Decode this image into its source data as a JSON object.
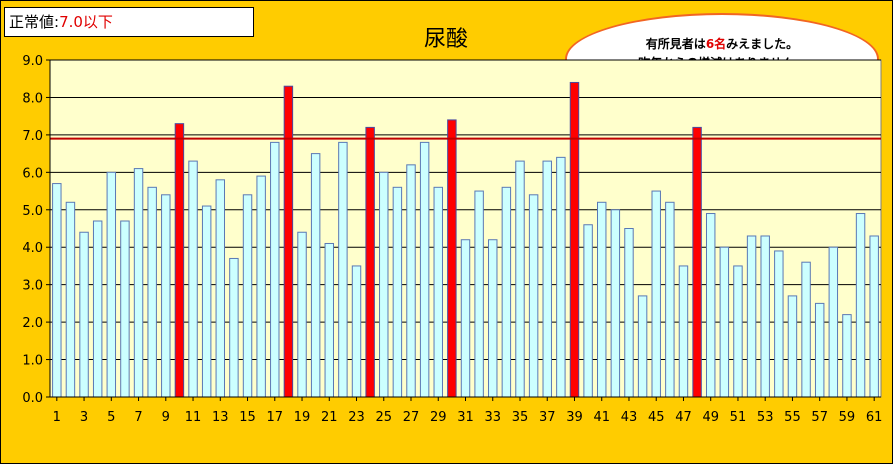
{
  "legend_box": {
    "label": "正常値:",
    "value": "7.0以下"
  },
  "note": {
    "line1_prefix": "有所見者は",
    "line1_number": "6名",
    "line1_suffix": "みえました。",
    "line2": "昨年からの増減はありません。"
  },
  "colors": {
    "background": "#FFCC00",
    "plot_area": "#FFFFCC",
    "normal_bar": "#CCFFFF",
    "abnormal_bar": "#FF0000",
    "threshold_line": "#C00000",
    "note_border": "#F26522"
  },
  "chart_data": {
    "type": "bar",
    "title": "尿酸",
    "threshold": 6.9,
    "ylim": [
      0.0,
      9.0
    ],
    "yticks": [
      "0.0",
      "1.0",
      "2.0",
      "3.0",
      "4.0",
      "5.0",
      "6.0",
      "7.0",
      "8.0",
      "9.0"
    ],
    "xtick_labels": [
      "1",
      "3",
      "5",
      "7",
      "9",
      "11",
      "13",
      "15",
      "17",
      "19",
      "21",
      "23",
      "25",
      "27",
      "29",
      "31",
      "33",
      "35",
      "37",
      "39",
      "41",
      "43",
      "45",
      "47",
      "49",
      "51",
      "53",
      "55",
      "57",
      "59",
      "61"
    ],
    "categories": [
      1,
      2,
      3,
      4,
      5,
      6,
      7,
      8,
      9,
      10,
      11,
      12,
      13,
      14,
      15,
      16,
      17,
      18,
      19,
      20,
      21,
      22,
      23,
      24,
      25,
      26,
      27,
      28,
      29,
      30,
      31,
      32,
      33,
      34,
      35,
      36,
      37,
      38,
      39,
      40,
      41,
      42,
      43,
      44,
      45,
      46,
      47,
      48,
      49,
      50,
      51,
      52,
      53,
      54,
      55,
      56,
      57,
      58,
      59,
      60,
      61
    ],
    "values": [
      5.7,
      5.2,
      4.4,
      4.7,
      6.0,
      4.7,
      6.1,
      5.6,
      5.4,
      7.3,
      6.3,
      5.1,
      5.8,
      3.7,
      5.4,
      5.9,
      6.8,
      8.3,
      4.4,
      6.5,
      4.1,
      6.8,
      3.5,
      7.2,
      6.0,
      5.6,
      6.2,
      6.8,
      5.6,
      7.4,
      4.2,
      5.5,
      4.2,
      5.6,
      6.3,
      5.4,
      6.3,
      6.4,
      8.4,
      4.6,
      5.2,
      5.0,
      4.5,
      2.7,
      5.5,
      5.2,
      3.5,
      7.2,
      4.9,
      4.0,
      3.5,
      4.3,
      4.3,
      3.9,
      2.7,
      3.6,
      2.5,
      4.0,
      2.2,
      4.9,
      4.3
    ],
    "grid": true,
    "legend": "none"
  }
}
